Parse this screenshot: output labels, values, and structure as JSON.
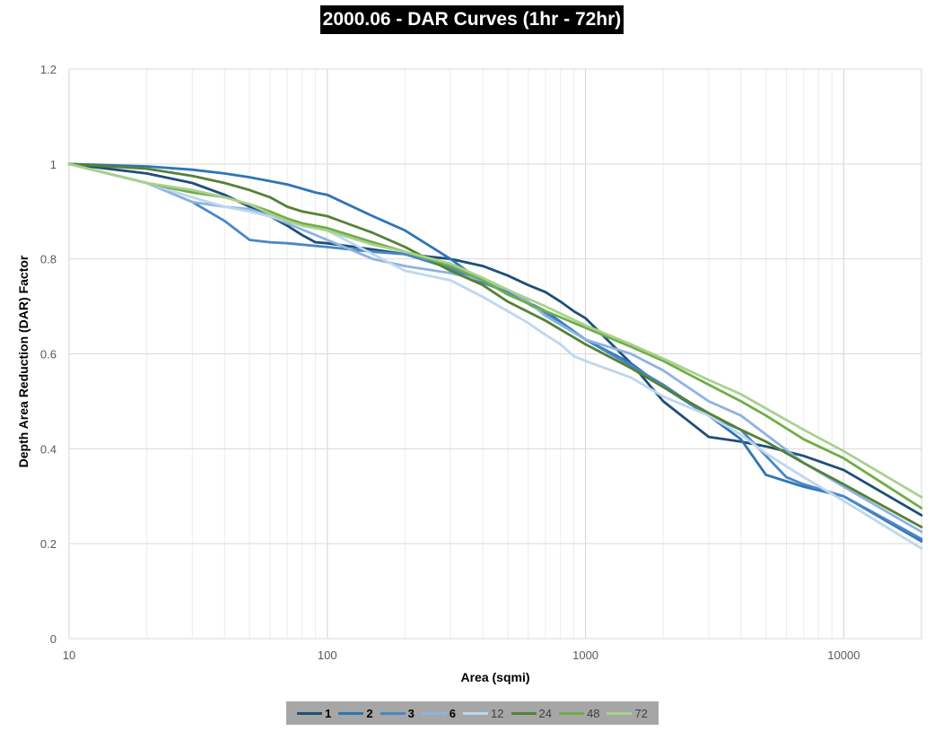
{
  "chart_data": {
    "type": "line",
    "title": "2000.06 - DAR Curves (1hr - 72hr)",
    "xlabel": "Area (sqmi)",
    "ylabel": "Depth Area Reduction (DAR) Factor",
    "xscale": "log",
    "xlim": [
      10,
      20000
    ],
    "ylim": [
      0,
      1.2
    ],
    "x_ticks": [
      "10",
      "100",
      "1000",
      "10000"
    ],
    "y_ticks": [
      "0",
      "0.2",
      "0.4",
      "0.6",
      "0.8",
      "1",
      "1.2"
    ],
    "grid": true,
    "legend_position": "bottom",
    "series": [
      {
        "name": "1",
        "color": "#1f4e79",
        "bold": true,
        "points": [
          [
            10,
            1
          ],
          [
            20,
            0.98
          ],
          [
            30,
            0.96
          ],
          [
            40,
            0.935
          ],
          [
            50,
            0.91
          ],
          [
            60,
            0.89
          ],
          [
            70,
            0.87
          ],
          [
            80,
            0.85
          ],
          [
            90,
            0.835
          ],
          [
            100,
            0.833
          ],
          [
            150,
            0.82
          ],
          [
            200,
            0.81
          ],
          [
            300,
            0.8
          ],
          [
            400,
            0.785
          ],
          [
            500,
            0.765
          ],
          [
            600,
            0.745
          ],
          [
            700,
            0.73
          ],
          [
            800,
            0.71
          ],
          [
            900,
            0.69
          ],
          [
            1000,
            0.675
          ],
          [
            1500,
            0.58
          ],
          [
            2000,
            0.5
          ],
          [
            3000,
            0.425
          ],
          [
            4000,
            0.415
          ],
          [
            5000,
            0.405
          ],
          [
            7000,
            0.385
          ],
          [
            10000,
            0.355
          ],
          [
            20000,
            0.26
          ]
        ]
      },
      {
        "name": "2",
        "color": "#2e75b6",
        "bold": true,
        "points": [
          [
            10,
            1
          ],
          [
            20,
            0.995
          ],
          [
            30,
            0.988
          ],
          [
            40,
            0.98
          ],
          [
            50,
            0.972
          ],
          [
            70,
            0.957
          ],
          [
            90,
            0.94
          ],
          [
            100,
            0.935
          ],
          [
            150,
            0.89
          ],
          [
            200,
            0.86
          ],
          [
            300,
            0.8
          ],
          [
            400,
            0.75
          ],
          [
            500,
            0.73
          ],
          [
            700,
            0.69
          ],
          [
            1000,
            0.63
          ],
          [
            1500,
            0.58
          ],
          [
            2000,
            0.53
          ],
          [
            3000,
            0.47
          ],
          [
            4000,
            0.42
          ],
          [
            5000,
            0.345
          ],
          [
            7000,
            0.32
          ],
          [
            10000,
            0.3
          ],
          [
            20000,
            0.205
          ]
        ]
      },
      {
        "name": "3",
        "color": "#4a86c8",
        "bold": true,
        "points": [
          [
            10,
            1
          ],
          [
            20,
            0.96
          ],
          [
            30,
            0.92
          ],
          [
            40,
            0.88
          ],
          [
            50,
            0.84
          ],
          [
            60,
            0.835
          ],
          [
            70,
            0.833
          ],
          [
            100,
            0.825
          ],
          [
            150,
            0.815
          ],
          [
            200,
            0.81
          ],
          [
            300,
            0.78
          ],
          [
            400,
            0.75
          ],
          [
            500,
            0.73
          ],
          [
            700,
            0.685
          ],
          [
            1000,
            0.63
          ],
          [
            1500,
            0.575
          ],
          [
            2000,
            0.535
          ],
          [
            3000,
            0.47
          ],
          [
            4000,
            0.44
          ],
          [
            5000,
            0.385
          ],
          [
            6000,
            0.34
          ],
          [
            7000,
            0.325
          ],
          [
            10000,
            0.3
          ],
          [
            20000,
            0.21
          ]
        ]
      },
      {
        "name": "6",
        "color": "#8db3e2",
        "bold": true,
        "points": [
          [
            10,
            1
          ],
          [
            20,
            0.96
          ],
          [
            30,
            0.92
          ],
          [
            40,
            0.91
          ],
          [
            50,
            0.905
          ],
          [
            60,
            0.89
          ],
          [
            70,
            0.875
          ],
          [
            100,
            0.84
          ],
          [
            150,
            0.8
          ],
          [
            200,
            0.785
          ],
          [
            300,
            0.77
          ],
          [
            400,
            0.755
          ],
          [
            500,
            0.735
          ],
          [
            600,
            0.71
          ],
          [
            700,
            0.68
          ],
          [
            1000,
            0.63
          ],
          [
            1500,
            0.6
          ],
          [
            2000,
            0.565
          ],
          [
            3000,
            0.5
          ],
          [
            4000,
            0.47
          ],
          [
            5000,
            0.43
          ],
          [
            7000,
            0.37
          ],
          [
            10000,
            0.32
          ],
          [
            20000,
            0.225
          ]
        ]
      },
      {
        "name": "12",
        "color": "#bdd7ee",
        "bold": false,
        "points": [
          [
            10,
            1
          ],
          [
            20,
            0.96
          ],
          [
            30,
            0.93
          ],
          [
            40,
            0.91
          ],
          [
            50,
            0.9
          ],
          [
            70,
            0.88
          ],
          [
            100,
            0.86
          ],
          [
            150,
            0.81
          ],
          [
            200,
            0.775
          ],
          [
            300,
            0.755
          ],
          [
            400,
            0.72
          ],
          [
            500,
            0.69
          ],
          [
            600,
            0.665
          ],
          [
            700,
            0.64
          ],
          [
            800,
            0.62
          ],
          [
            900,
            0.595
          ],
          [
            1000,
            0.585
          ],
          [
            1500,
            0.55
          ],
          [
            2000,
            0.51
          ],
          [
            3000,
            0.47
          ],
          [
            4000,
            0.43
          ],
          [
            5000,
            0.39
          ],
          [
            7000,
            0.34
          ],
          [
            10000,
            0.29
          ],
          [
            20000,
            0.19
          ]
        ]
      },
      {
        "name": "24",
        "color": "#548235",
        "bold": false,
        "points": [
          [
            10,
            1
          ],
          [
            20,
            0.99
          ],
          [
            30,
            0.975
          ],
          [
            40,
            0.96
          ],
          [
            50,
            0.945
          ],
          [
            60,
            0.93
          ],
          [
            70,
            0.91
          ],
          [
            80,
            0.9
          ],
          [
            100,
            0.89
          ],
          [
            150,
            0.855
          ],
          [
            200,
            0.825
          ],
          [
            300,
            0.775
          ],
          [
            400,
            0.745
          ],
          [
            500,
            0.71
          ],
          [
            700,
            0.67
          ],
          [
            1000,
            0.62
          ],
          [
            1500,
            0.57
          ],
          [
            2000,
            0.53
          ],
          [
            3000,
            0.475
          ],
          [
            4000,
            0.44
          ],
          [
            5000,
            0.415
          ],
          [
            7000,
            0.37
          ],
          [
            10000,
            0.325
          ],
          [
            20000,
            0.235
          ]
        ]
      },
      {
        "name": "48",
        "color": "#70ad47",
        "bold": false,
        "points": [
          [
            10,
            1
          ],
          [
            20,
            0.96
          ],
          [
            30,
            0.94
          ],
          [
            40,
            0.93
          ],
          [
            50,
            0.915
          ],
          [
            60,
            0.9
          ],
          [
            70,
            0.885
          ],
          [
            80,
            0.875
          ],
          [
            100,
            0.865
          ],
          [
            150,
            0.835
          ],
          [
            200,
            0.815
          ],
          [
            300,
            0.785
          ],
          [
            400,
            0.755
          ],
          [
            500,
            0.725
          ],
          [
            700,
            0.69
          ],
          [
            1000,
            0.655
          ],
          [
            1500,
            0.615
          ],
          [
            2000,
            0.585
          ],
          [
            3000,
            0.535
          ],
          [
            4000,
            0.5
          ],
          [
            5000,
            0.47
          ],
          [
            7000,
            0.42
          ],
          [
            10000,
            0.38
          ],
          [
            20000,
            0.275
          ]
        ]
      },
      {
        "name": "72",
        "color": "#a9d18e",
        "bold": false,
        "points": [
          [
            10,
            1
          ],
          [
            20,
            0.96
          ],
          [
            30,
            0.945
          ],
          [
            40,
            0.93
          ],
          [
            50,
            0.915
          ],
          [
            60,
            0.895
          ],
          [
            70,
            0.88
          ],
          [
            80,
            0.87
          ],
          [
            100,
            0.86
          ],
          [
            150,
            0.83
          ],
          [
            200,
            0.815
          ],
          [
            300,
            0.79
          ],
          [
            400,
            0.76
          ],
          [
            500,
            0.735
          ],
          [
            700,
            0.7
          ],
          [
            1000,
            0.66
          ],
          [
            1500,
            0.62
          ],
          [
            2000,
            0.59
          ],
          [
            3000,
            0.545
          ],
          [
            4000,
            0.515
          ],
          [
            5000,
            0.485
          ],
          [
            7000,
            0.44
          ],
          [
            10000,
            0.395
          ],
          [
            20000,
            0.298
          ]
        ]
      }
    ]
  }
}
